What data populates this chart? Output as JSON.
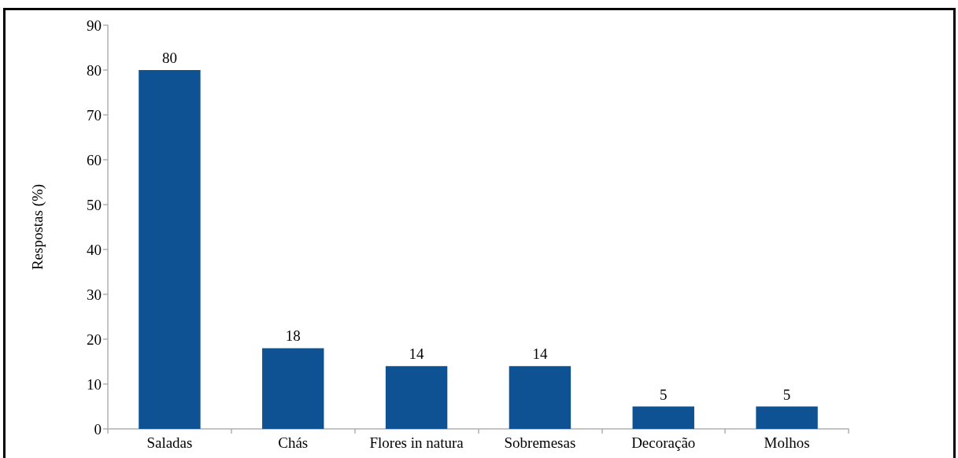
{
  "chart_data": {
    "type": "bar",
    "ylabel": "Respostas (%)",
    "categories": [
      "Saladas",
      "Chás",
      "Flores in natura",
      "Sobremesas",
      "Decoração",
      "Molhos"
    ],
    "values": [
      80,
      18,
      14,
      14,
      5,
      5
    ],
    "color": "#0f5294",
    "ylim": [
      0,
      90
    ],
    "yticks": [
      0,
      10,
      20,
      30,
      40,
      50,
      60,
      70,
      80,
      90
    ],
    "grid": false,
    "data_labels": true
  }
}
